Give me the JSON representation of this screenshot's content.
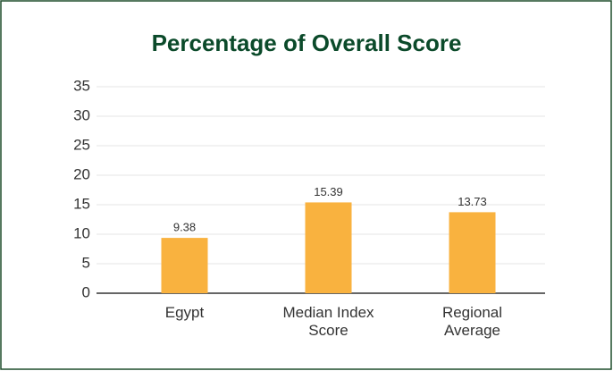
{
  "chart_data": {
    "type": "bar",
    "title": "Percentage of Overall Score",
    "categories": [
      "Egypt",
      "Median Index Score",
      "Regional Average"
    ],
    "values": [
      9.38,
      15.39,
      13.73
    ],
    "color": "#f9b23f",
    "ylim": [
      0,
      35
    ],
    "yticks": [
      0,
      5,
      10,
      15,
      20,
      25,
      30,
      35
    ],
    "grid": true
  }
}
